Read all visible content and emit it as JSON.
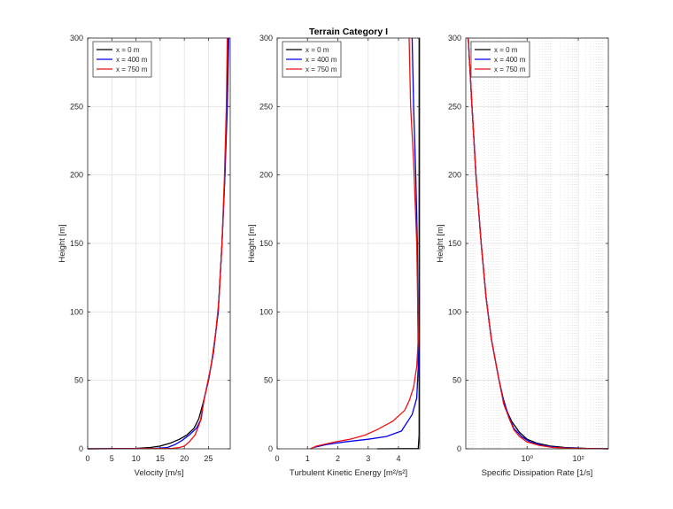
{
  "figure": {
    "title": "Terrain Category I"
  },
  "colors": {
    "x0": "#000000",
    "x400": "#0000ee",
    "x750": "#ee1111"
  },
  "chart_data": [
    {
      "type": "line",
      "xlabel": "Velocity [m/s]",
      "ylabel": "Height [m]",
      "xlim": [
        0,
        29.5
      ],
      "ylim": [
        0,
        300
      ],
      "xticks": [
        {
          "value": 0,
          "label": "0"
        },
        {
          "value": 5,
          "label": "5"
        },
        {
          "value": 10,
          "label": "10"
        },
        {
          "value": 15,
          "label": "15"
        },
        {
          "value": 20,
          "label": "20"
        },
        {
          "value": 25,
          "label": "25"
        }
      ],
      "yticks": [
        {
          "value": 0,
          "label": "0"
        },
        {
          "value": 50,
          "label": "50"
        },
        {
          "value": 100,
          "label": "100"
        },
        {
          "value": 150,
          "label": "150"
        },
        {
          "value": 200,
          "label": "200"
        },
        {
          "value": 250,
          "label": "250"
        },
        {
          "value": 300,
          "label": "300"
        }
      ],
      "grid": true,
      "legend": "top-left",
      "series": [
        {
          "name": "x = 0 m",
          "color_key": "x0",
          "points": [
            [
              0,
              0
            ],
            [
              10,
              0.3
            ],
            [
              13,
              1
            ],
            [
              15,
              2
            ],
            [
              17,
              4
            ],
            [
              19,
              7
            ],
            [
              20.5,
              10
            ],
            [
              22,
              15
            ],
            [
              23,
              22
            ],
            [
              24,
              35
            ],
            [
              25,
              50
            ],
            [
              26,
              70
            ],
            [
              27,
              100
            ],
            [
              27.8,
              150
            ],
            [
              28.4,
              200
            ],
            [
              28.8,
              250
            ],
            [
              29.1,
              300
            ]
          ]
        },
        {
          "name": "x = 400 m",
          "color_key": "x400",
          "points": [
            [
              0,
              0
            ],
            [
              14,
              0.3
            ],
            [
              16.5,
              1
            ],
            [
              18,
              3
            ],
            [
              19.5,
              6
            ],
            [
              21,
              10
            ],
            [
              22.5,
              15
            ],
            [
              23.5,
              22
            ],
            [
              24,
              35
            ],
            [
              25,
              50
            ],
            [
              26,
              70
            ],
            [
              27,
              100
            ],
            [
              27.8,
              150
            ],
            [
              28.4,
              200
            ],
            [
              28.9,
              250
            ],
            [
              29.2,
              300
            ]
          ]
        },
        {
          "name": "x = 750 m",
          "color_key": "x750",
          "points": [
            [
              0,
              0
            ],
            [
              17.5,
              0.3
            ],
            [
              19,
              1
            ],
            [
              20,
              2
            ],
            [
              21,
              5
            ],
            [
              22.2,
              10
            ],
            [
              23.3,
              20
            ],
            [
              23.8,
              30
            ],
            [
              24.6,
              45
            ],
            [
              25.5,
              60
            ],
            [
              26.5,
              85
            ],
            [
              27.2,
              110
            ],
            [
              27.8,
              150
            ],
            [
              28.3,
              200
            ],
            [
              28.7,
              250
            ],
            [
              28.9,
              300
            ]
          ]
        }
      ]
    },
    {
      "type": "line",
      "xlabel": "Turbulent Kinetic Energy [m²/s²]",
      "ylabel": "Height [m]",
      "xlim": [
        0,
        4.7
      ],
      "ylim": [
        0,
        300
      ],
      "xticks": [
        {
          "value": 0,
          "label": "0"
        },
        {
          "value": 1,
          "label": "1"
        },
        {
          "value": 2,
          "label": "2"
        },
        {
          "value": 3,
          "label": "3"
        },
        {
          "value": 4,
          "label": "4"
        }
      ],
      "yticks": [
        {
          "value": 0,
          "label": "0"
        },
        {
          "value": 50,
          "label": "50"
        },
        {
          "value": 100,
          "label": "100"
        },
        {
          "value": 150,
          "label": "150"
        },
        {
          "value": 200,
          "label": "200"
        },
        {
          "value": 250,
          "label": "250"
        },
        {
          "value": 300,
          "label": "300"
        }
      ],
      "grid": true,
      "legend": "top-left",
      "series": [
        {
          "name": "x = 0 m",
          "color_key": "x0",
          "points": [
            [
              3.3,
              0
            ],
            [
              4.65,
              0.2
            ],
            [
              4.68,
              10
            ],
            [
              4.68,
              100
            ],
            [
              4.68,
              200
            ],
            [
              4.68,
              300
            ]
          ]
        },
        {
          "name": "x = 400 m",
          "color_key": "x400",
          "points": [
            [
              1.1,
              0
            ],
            [
              1.2,
              1
            ],
            [
              1.6,
              3
            ],
            [
              2.2,
              5
            ],
            [
              3,
              7
            ],
            [
              3.6,
              9
            ],
            [
              4.1,
              13
            ],
            [
              4.45,
              25
            ],
            [
              4.6,
              37
            ],
            [
              4.65,
              60
            ],
            [
              4.62,
              150
            ],
            [
              4.57,
              200
            ],
            [
              4.5,
              250
            ],
            [
              4.45,
              300
            ]
          ]
        },
        {
          "name": "x = 750 m",
          "color_key": "x750",
          "points": [
            [
              1.1,
              0
            ],
            [
              1.3,
              2
            ],
            [
              1.9,
              5
            ],
            [
              2.4,
              7
            ],
            [
              2.9,
              10
            ],
            [
              3.3,
              14
            ],
            [
              3.8,
              20
            ],
            [
              4.2,
              28
            ],
            [
              4.35,
              35
            ],
            [
              4.5,
              45
            ],
            [
              4.6,
              60
            ],
            [
              4.65,
              80
            ],
            [
              4.6,
              150
            ],
            [
              4.5,
              210
            ],
            [
              4.4,
              250
            ],
            [
              4.35,
              300
            ]
          ]
        }
      ]
    },
    {
      "type": "line",
      "xlabel": "Specific Dissipation Rate [1/s]",
      "ylabel": "Height [m]",
      "xscale": "log",
      "xlim": [
        0.004,
        1500
      ],
      "ylim": [
        0,
        300
      ],
      "xticks": [
        {
          "value": 1,
          "label": "10⁰"
        },
        {
          "value": 100,
          "label": "10²"
        }
      ],
      "yticks": [
        {
          "value": 0,
          "label": "0"
        },
        {
          "value": 50,
          "label": "50"
        },
        {
          "value": 100,
          "label": "100"
        },
        {
          "value": 150,
          "label": "150"
        },
        {
          "value": 200,
          "label": "200"
        },
        {
          "value": 250,
          "label": "250"
        },
        {
          "value": 300,
          "label": "300"
        }
      ],
      "grid": true,
      "legend": "top-left",
      "series": [
        {
          "name": "x = 0 m",
          "color_key": "x0",
          "points": [
            [
              1500,
              0
            ],
            [
              200,
              0.3
            ],
            [
              30,
              1
            ],
            [
              8,
              2
            ],
            [
              2.5,
              4
            ],
            [
              1,
              7
            ],
            [
              0.5,
              12
            ],
            [
              0.25,
              20
            ],
            [
              0.14,
              30
            ],
            [
              0.08,
              50
            ],
            [
              0.04,
              80
            ],
            [
              0.025,
              110
            ],
            [
              0.016,
              150
            ],
            [
              0.01,
              200
            ],
            [
              0.007,
              250
            ],
            [
              0.005,
              300
            ]
          ]
        },
        {
          "name": "x = 400 m",
          "color_key": "x400",
          "points": [
            [
              1500,
              0
            ],
            [
              100,
              0.3
            ],
            [
              15,
              1
            ],
            [
              4,
              2.5
            ],
            [
              1.3,
              5
            ],
            [
              0.6,
              9
            ],
            [
              0.3,
              15
            ],
            [
              0.18,
              25
            ],
            [
              0.11,
              38
            ],
            [
              0.08,
              50
            ],
            [
              0.04,
              80
            ],
            [
              0.025,
              110
            ],
            [
              0.016,
              150
            ],
            [
              0.01,
              200
            ],
            [
              0.007,
              250
            ],
            [
              0.005,
              300
            ]
          ]
        },
        {
          "name": "x = 750 m",
          "color_key": "x750",
          "points": [
            [
              1500,
              0
            ],
            [
              60,
              0.3
            ],
            [
              10,
              1
            ],
            [
              3,
              2.5
            ],
            [
              1,
              5
            ],
            [
              0.5,
              9
            ],
            [
              0.3,
              14
            ],
            [
              0.2,
              22
            ],
            [
              0.12,
              33
            ],
            [
              0.08,
              50
            ],
            [
              0.04,
              80
            ],
            [
              0.025,
              110
            ],
            [
              0.016,
              150
            ],
            [
              0.01,
              200
            ],
            [
              0.007,
              250
            ],
            [
              0.005,
              300
            ]
          ]
        }
      ]
    }
  ]
}
